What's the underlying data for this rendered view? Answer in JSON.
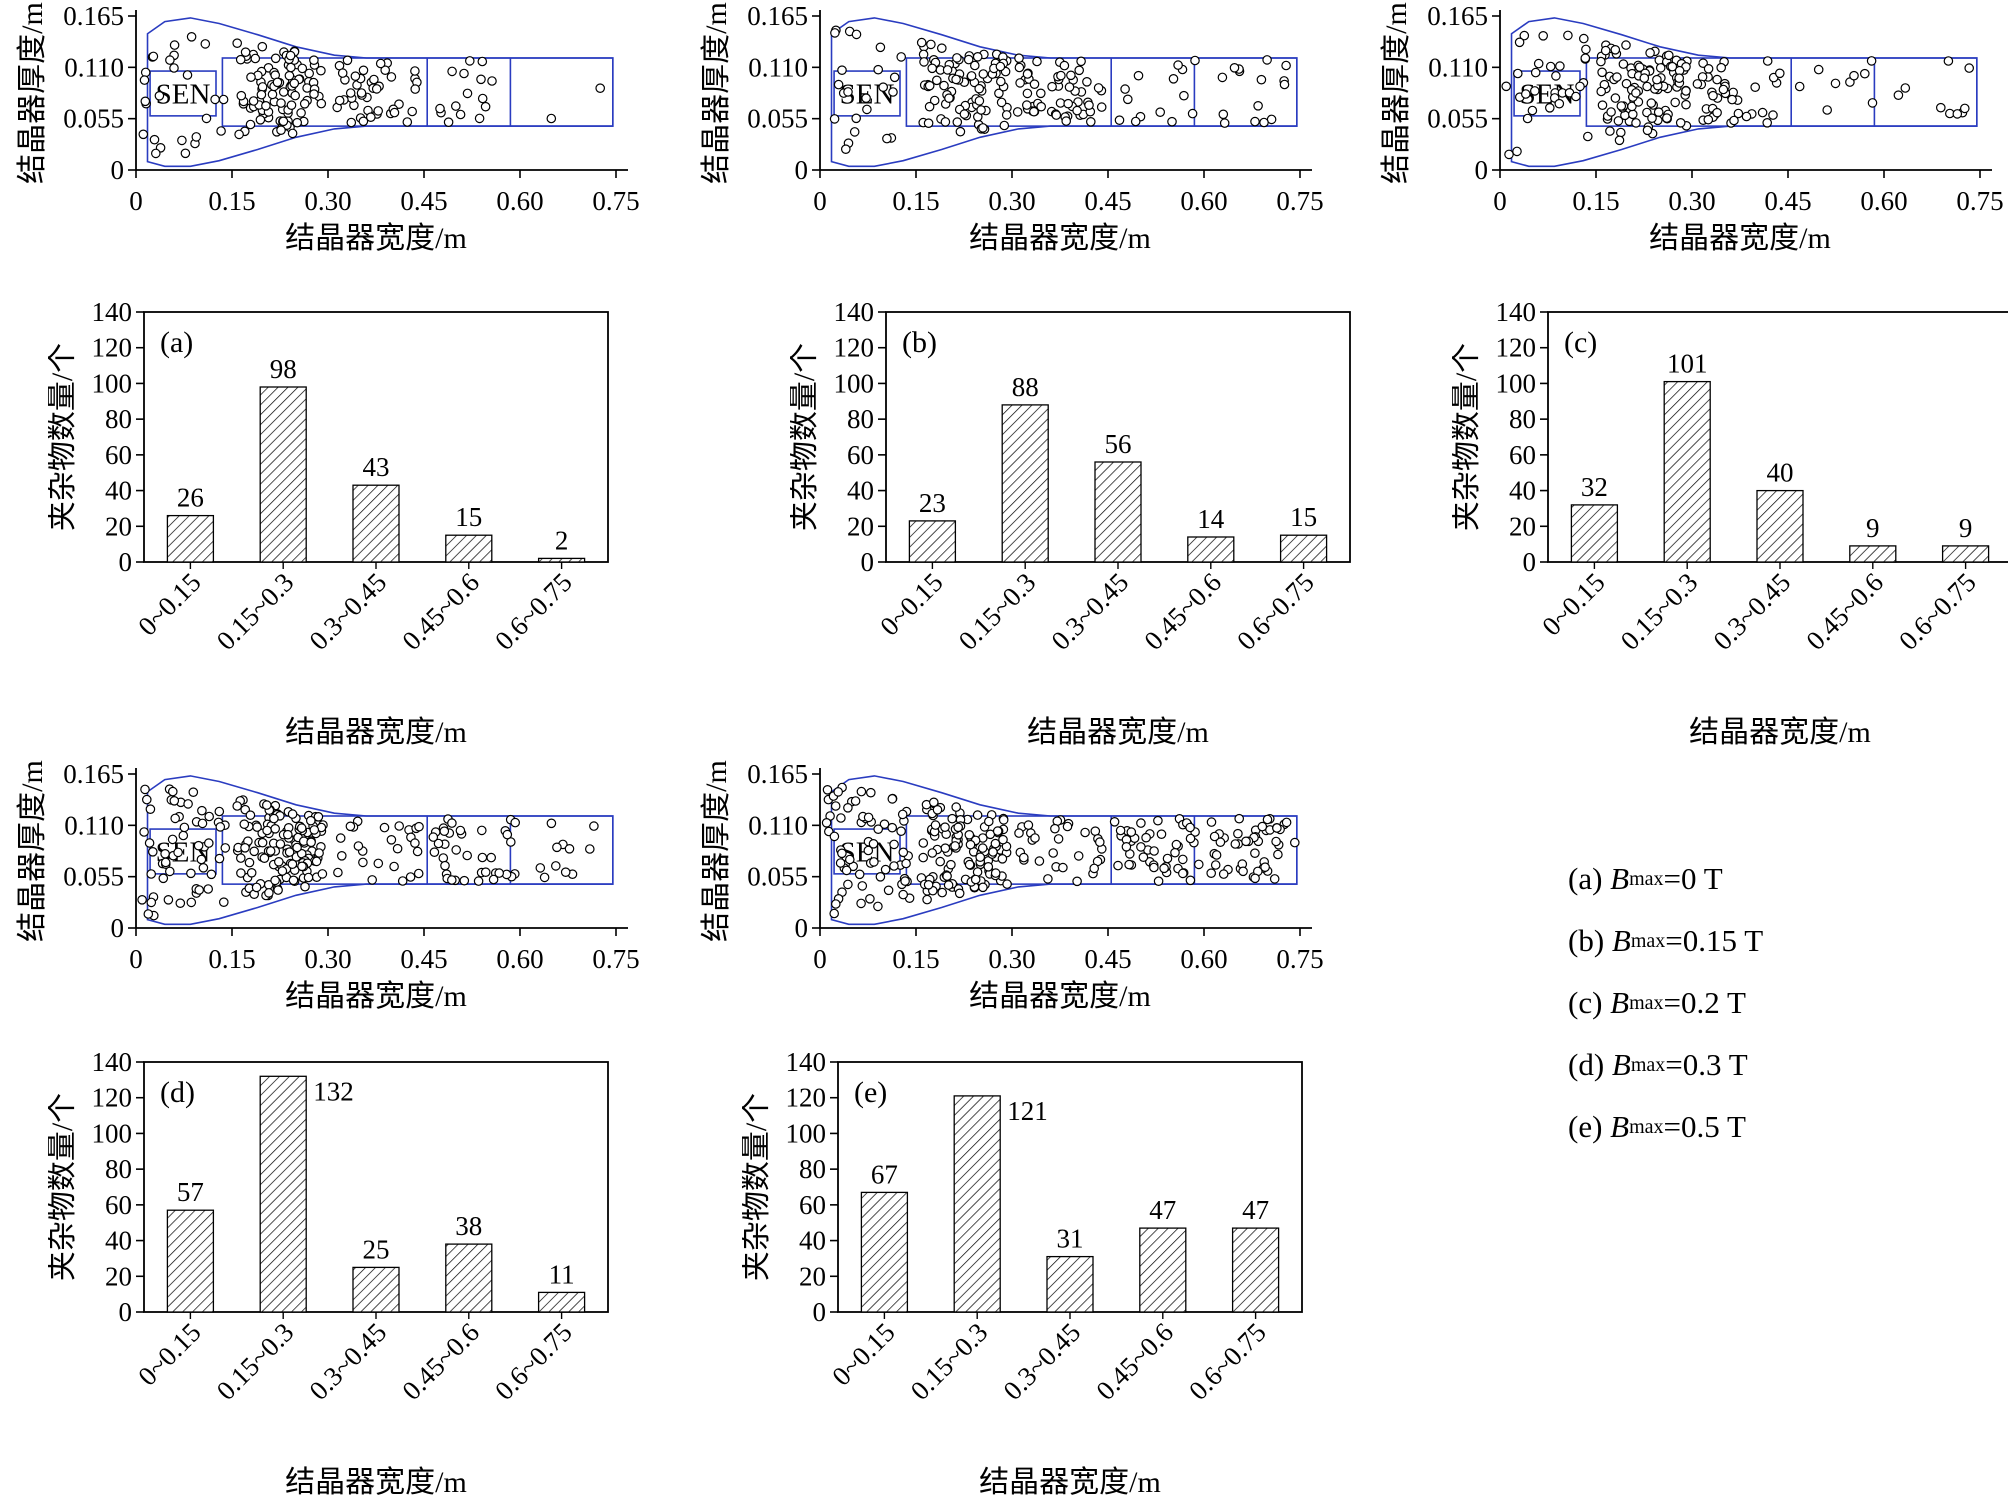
{
  "figure": {
    "background": "#ffffff",
    "colors": {
      "mold_outline": "#2a3cc0",
      "axis": "#000000",
      "point_stroke": "#000000",
      "bar_hatch": "#000000",
      "text": "#000000"
    }
  },
  "scatter_axes": {
    "xlabel": "结晶器宽度/m",
    "ylabel": "结晶器厚度/m",
    "xlim": [
      0,
      0.75
    ],
    "ylim": [
      0,
      0.165
    ],
    "xticks": [
      "0",
      "0.15",
      "0.30",
      "0.45",
      "0.60",
      "0.75"
    ],
    "xtick_values": [
      0,
      0.15,
      0.3,
      0.45,
      0.6,
      0.75
    ],
    "yticks": [
      "0",
      "0.055",
      "0.110",
      "0.165"
    ],
    "ytick_values": [
      0,
      0.055,
      0.11,
      0.165
    ],
    "sen_label": "SEN",
    "grid": false
  },
  "bar_axes": {
    "xlabel": "结晶器宽度/m",
    "ylabel": "夹杂物数量/个",
    "ylim": [
      0,
      140
    ],
    "ytick_values": [
      0,
      20,
      40,
      60,
      80,
      100,
      120,
      140
    ],
    "categories": [
      "0~0.15",
      "0.15~0.3",
      "0.3~0.45",
      "0.45~0.6",
      "0.6~0.75"
    ],
    "grid": false,
    "legend_position": "none"
  },
  "chart_data": [
    {
      "type": "scatter",
      "panel": "a",
      "condition": "Bmax=0 T",
      "xlabel": "结晶器宽度/m",
      "ylabel": "结晶器厚度/m",
      "xlim": [
        0,
        0.75
      ],
      "ylim": [
        0,
        0.165
      ],
      "bands": [
        "0~0.15",
        "0.15~0.3",
        "0.3~0.45",
        "0.45~0.6",
        "0.6~0.75"
      ],
      "points_per_band": [
        26,
        98,
        43,
        15,
        2
      ],
      "annotation": "SEN",
      "seed": 101
    },
    {
      "type": "scatter",
      "panel": "b",
      "condition": "Bmax=0.15 T",
      "xlabel": "结晶器宽度/m",
      "ylabel": "结晶器厚度/m",
      "xlim": [
        0,
        0.75
      ],
      "ylim": [
        0,
        0.165
      ],
      "bands": [
        "0~0.15",
        "0.15~0.3",
        "0.3~0.45",
        "0.45~0.6",
        "0.6~0.75"
      ],
      "points_per_band": [
        23,
        88,
        56,
        14,
        15
      ],
      "annotation": "SEN",
      "seed": 202
    },
    {
      "type": "scatter",
      "panel": "c",
      "condition": "Bmax=0.2 T",
      "xlabel": "结晶器宽度/m",
      "ylabel": "结晶器厚度/m",
      "xlim": [
        0,
        0.75
      ],
      "ylim": [
        0,
        0.165
      ],
      "bands": [
        "0~0.15",
        "0.15~0.3",
        "0.3~0.45",
        "0.45~0.6",
        "0.6~0.75"
      ],
      "points_per_band": [
        32,
        101,
        40,
        9,
        9
      ],
      "annotation": "SEN",
      "seed": 303
    },
    {
      "type": "scatter",
      "panel": "d",
      "condition": "Bmax=0.3 T",
      "xlabel": "结晶器宽度/m",
      "ylabel": "结晶器厚度/m",
      "xlim": [
        0,
        0.75
      ],
      "ylim": [
        0,
        0.165
      ],
      "bands": [
        "0~0.15",
        "0.15~0.3",
        "0.3~0.45",
        "0.45~0.6",
        "0.6~0.75"
      ],
      "points_per_band": [
        57,
        132,
        25,
        38,
        11
      ],
      "annotation": "SEN",
      "seed": 404
    },
    {
      "type": "scatter",
      "panel": "e",
      "condition": "Bmax=0.5 T",
      "xlabel": "结晶器宽度/m",
      "ylabel": "结晶器厚度/m",
      "xlim": [
        0,
        0.75
      ],
      "ylim": [
        0,
        0.165
      ],
      "bands": [
        "0~0.15",
        "0.15~0.3",
        "0.3~0.45",
        "0.45~0.6",
        "0.6~0.75"
      ],
      "points_per_band": [
        67,
        121,
        31,
        47,
        47
      ],
      "annotation": "SEN",
      "seed": 505
    },
    {
      "type": "bar",
      "panel": "(a)",
      "condition": "Bmax=0 T",
      "categories": [
        "0~0.15",
        "0.15~0.3",
        "0.3~0.45",
        "0.45~0.6",
        "0.6~0.75"
      ],
      "values": [
        26,
        98,
        43,
        15,
        2
      ],
      "ylim": [
        0,
        140
      ],
      "xlabel": "结晶器宽度/m",
      "ylabel": "夹杂物数量/个"
    },
    {
      "type": "bar",
      "panel": "(b)",
      "condition": "Bmax=0.15 T",
      "categories": [
        "0~0.15",
        "0.15~0.3",
        "0.3~0.45",
        "0.45~0.6",
        "0.6~0.75"
      ],
      "values": [
        23,
        88,
        56,
        14,
        15
      ],
      "ylim": [
        0,
        140
      ],
      "xlabel": "结晶器宽度/m",
      "ylabel": "夹杂物数量/个"
    },
    {
      "type": "bar",
      "panel": "(c)",
      "condition": "Bmax=0.2 T",
      "categories": [
        "0~0.15",
        "0.15~0.3",
        "0.3~0.45",
        "0.45~0.6",
        "0.6~0.75"
      ],
      "values": [
        32,
        101,
        40,
        9,
        9
      ],
      "ylim": [
        0,
        140
      ],
      "xlabel": "结晶器宽度/m",
      "ylabel": "夹杂物数量/个"
    },
    {
      "type": "bar",
      "panel": "(d)",
      "condition": "Bmax=0.3 T",
      "categories": [
        "0~0.15",
        "0.15~0.3",
        "0.3~0.45",
        "0.45~0.6",
        "0.6~0.75"
      ],
      "values": [
        57,
        132,
        25,
        38,
        11
      ],
      "ylim": [
        0,
        140
      ],
      "xlabel": "结晶器宽度/m",
      "ylabel": "夹杂物数量/个"
    },
    {
      "type": "bar",
      "panel": "(e)",
      "condition": "Bmax=0.5 T",
      "categories": [
        "0~0.15",
        "0.15~0.3",
        "0.3~0.45",
        "0.45~0.6",
        "0.6~0.75"
      ],
      "values": [
        67,
        121,
        31,
        47,
        47
      ],
      "ylim": [
        0,
        140
      ],
      "xlabel": "结晶器宽度/m",
      "ylabel": "夹杂物数量/个"
    }
  ],
  "legend": {
    "items": [
      {
        "prefix": "(a) ",
        "symbol": "B",
        "subscript": "max",
        "value": "=0 T"
      },
      {
        "prefix": "(b) ",
        "symbol": "B",
        "subscript": "max",
        "value": "=0.15 T"
      },
      {
        "prefix": "(c) ",
        "symbol": "B",
        "subscript": "max",
        "value": "=0.2 T"
      },
      {
        "prefix": "(d) ",
        "symbol": "B",
        "subscript": "max",
        "value": "=0.3 T"
      },
      {
        "prefix": "(e) ",
        "symbol": "B",
        "subscript": "max",
        "value": "=0.5 T"
      }
    ]
  }
}
